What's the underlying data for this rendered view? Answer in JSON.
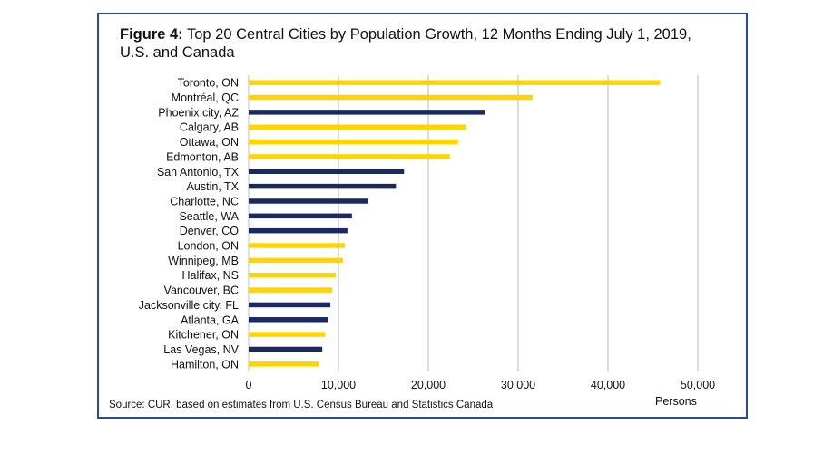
{
  "figure": {
    "title_bold": "Figure 4:",
    "title_rest": " Top 20 Central Cities by Population Growth, 12 Months Ending July 1, 2019, U.S. and Canada",
    "source": "Source: CUR, based on estimates from U.S. Census Bureau and Statistics Canada",
    "unit_label": "Persons"
  },
  "colors": {
    "canada": "#ffd500",
    "us": "#1b2a5e",
    "grid": "#d0d0d0",
    "frame": "#1f4e9c"
  },
  "chart_data": {
    "type": "bar",
    "orientation": "horizontal",
    "title": "Figure 4: Top 20 Central Cities by Population Growth, 12 Months Ending July 1, 2019, U.S. and Canada",
    "xlabel": "Persons",
    "xlim": [
      0,
      50000
    ],
    "xticks": [
      0,
      10000,
      20000,
      30000,
      40000,
      50000
    ],
    "xtick_labels": [
      "0",
      "10,000",
      "20,000",
      "30,000",
      "40,000",
      "50,000"
    ],
    "grid": "vertical",
    "categories": [
      "Toronto, ON",
      "Montréal, QC",
      "Phoenix city, AZ",
      "Calgary, AB",
      "Ottawa, ON",
      "Edmonton, AB",
      "San Antonio, TX",
      "Austin, TX",
      "Charlotte, NC",
      "Seattle, WA",
      "Denver, CO",
      "London, ON",
      "Winnipeg, MB",
      "Halifax, NS",
      "Vancouver, BC",
      "Jacksonville city, FL",
      "Atlanta, GA",
      "Kitchener, ON",
      "Las Vegas, NV",
      "Hamilton, ON"
    ],
    "values": [
      45800,
      31600,
      26300,
      24200,
      23300,
      22400,
      17300,
      16400,
      13300,
      11500,
      11000,
      10700,
      10500,
      9700,
      9300,
      9100,
      8800,
      8500,
      8200,
      7800
    ],
    "countries": [
      "canada",
      "canada",
      "us",
      "canada",
      "canada",
      "canada",
      "us",
      "us",
      "us",
      "us",
      "us",
      "canada",
      "canada",
      "canada",
      "canada",
      "us",
      "us",
      "canada",
      "us",
      "canada"
    ]
  }
}
